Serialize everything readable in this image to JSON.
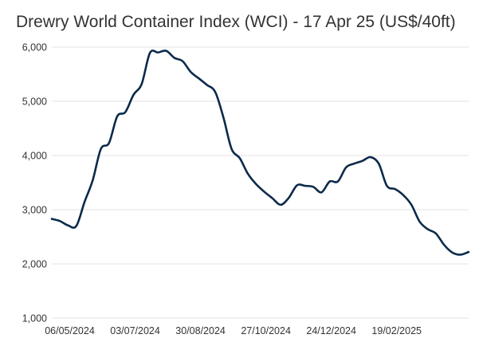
{
  "chart_data": {
    "type": "line",
    "title": "Drewry World Container Index (WCI) - 17 Apr 25 (US$/40ft)",
    "xlabel": "",
    "ylabel": "",
    "ylim": [
      1000,
      6000
    ],
    "y_ticks": [
      1000,
      2000,
      3000,
      4000,
      5000,
      6000
    ],
    "y_tick_labels": [
      "1,000",
      "2,000",
      "3,000",
      "4,000",
      "5,000",
      "6,000"
    ],
    "x_tick_labels": [
      "06/05/2024",
      "03/07/2024",
      "30/08/2024",
      "27/10/2024",
      "24/12/2024",
      "19/02/2025"
    ],
    "x_tick_weeks": [
      2,
      10,
      18,
      26,
      34,
      42
    ],
    "grid": true,
    "legend": "none",
    "colors": {
      "line": "#0b2a4a",
      "grid": "#e3e3e3",
      "text": "#333333"
    },
    "series": [
      {
        "name": "WCI",
        "x": [
          0,
          1,
          2,
          3,
          4,
          5,
          6,
          7,
          8,
          9,
          10,
          11,
          12,
          13,
          14,
          15,
          16,
          17,
          18,
          19,
          20,
          21,
          22,
          23,
          24,
          25,
          26,
          27,
          28,
          29,
          30,
          31,
          32,
          33,
          34,
          35,
          36,
          37,
          38,
          39,
          40,
          41,
          42,
          43,
          44,
          45,
          46,
          47,
          48,
          49,
          50,
          51
        ],
        "values": [
          2830,
          2790,
          2710,
          2700,
          3140,
          3540,
          4120,
          4230,
          4720,
          4800,
          5120,
          5320,
          5890,
          5900,
          5930,
          5800,
          5740,
          5540,
          5420,
          5300,
          5170,
          4700,
          4120,
          3950,
          3660,
          3470,
          3330,
          3210,
          3090,
          3220,
          3450,
          3440,
          3420,
          3320,
          3520,
          3520,
          3780,
          3850,
          3900,
          3970,
          3850,
          3440,
          3380,
          3270,
          3090,
          2780,
          2640,
          2560,
          2350,
          2210,
          2170,
          2220
        ]
      }
    ]
  }
}
